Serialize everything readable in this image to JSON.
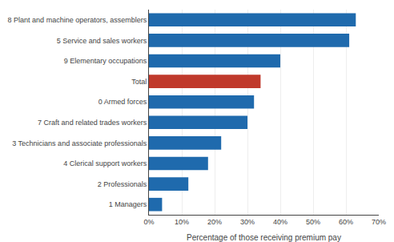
{
  "chart_data": {
    "type": "bar",
    "orientation": "horizontal",
    "categories": [
      "8 Plant and machine operators, assemblers",
      "5 Service and sales workers",
      "9 Elementary occupations",
      "Total",
      "0 Armed forces",
      "7 Craft and related trades workers",
      "3 Technicians and associate professionals",
      "4 Clerical support workers",
      "2 Professionals",
      "1 Managers"
    ],
    "values": [
      63,
      61,
      40,
      34,
      32,
      30,
      22,
      18,
      12,
      4
    ],
    "colors": [
      "#1F6AAD",
      "#1F6AAD",
      "#1F6AAD",
      "#C0392B",
      "#1F6AAD",
      "#1F6AAD",
      "#1F6AAD",
      "#1F6AAD",
      "#1F6AAD",
      "#1F6AAD"
    ],
    "xlabel": "Percentage of those receiving premium pay",
    "xlim": [
      0,
      70
    ],
    "xticks": [
      {
        "value": 0,
        "label": "0%"
      },
      {
        "value": 10,
        "label": "10%"
      },
      {
        "value": 20,
        "label": "20%"
      },
      {
        "value": 30,
        "label": "30%"
      },
      {
        "value": 40,
        "label": "40%"
      },
      {
        "value": 50,
        "label": "50%"
      },
      {
        "value": 60,
        "label": "60%"
      },
      {
        "value": 70,
        "label": "70%"
      }
    ],
    "grid": true
  }
}
